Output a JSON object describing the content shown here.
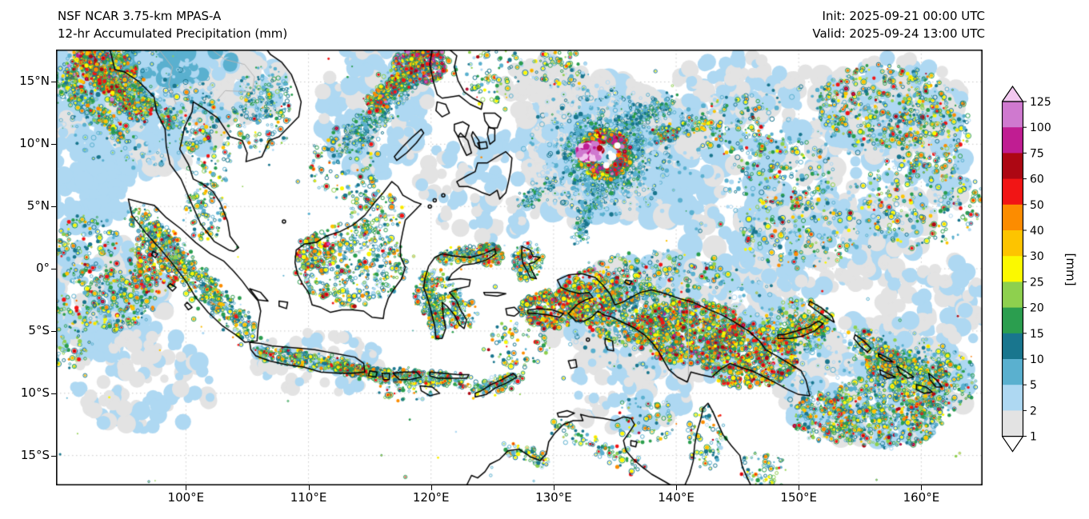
{
  "header": {
    "title_line1": "NSF NCAR 3.75-km MPAS-A",
    "title_line2": "12-hr Accumulated Precipitation (mm)",
    "init_label": "Init: 2025-09-21 00:00 UTC",
    "valid_label": "Valid: 2025-09-24 13:00 UTC"
  },
  "chart_data": {
    "type": "heatmap",
    "title": "12-hr Accumulated Precipitation (mm)",
    "model": "NSF NCAR 3.75-km MPAS-A",
    "init_time": "2025-09-21 00:00 UTC",
    "valid_time": "2025-09-24 13:00 UTC",
    "units": "mm",
    "lon_range": [
      89.4,
      165.0
    ],
    "lat_range": [
      -17.4,
      17.6
    ],
    "grid": "dotted",
    "x_axis": {
      "ticks": [
        {
          "label": "100°E",
          "lon": 100
        },
        {
          "label": "110°E",
          "lon": 110
        },
        {
          "label": "120°E",
          "lon": 120
        },
        {
          "label": "130°E",
          "lon": 130
        },
        {
          "label": "140°E",
          "lon": 140
        },
        {
          "label": "150°E",
          "lon": 150
        },
        {
          "label": "160°E",
          "lon": 160
        }
      ]
    },
    "y_axis": {
      "ticks": [
        {
          "label": "15°N",
          "lat": 15
        },
        {
          "label": "10°N",
          "lat": 10
        },
        {
          "label": "5°N",
          "lat": 5
        },
        {
          "label": "0°",
          "lat": 0
        },
        {
          "label": "5°S",
          "lat": -5
        },
        {
          "label": "10°S",
          "lat": -10
        },
        {
          "label": "15°S",
          "lat": -15
        }
      ]
    },
    "colorbar": {
      "label": "[mm]",
      "levels": [
        1,
        2,
        5,
        10,
        15,
        20,
        25,
        30,
        40,
        50,
        60,
        75,
        100,
        125
      ],
      "tick_labels": [
        "125",
        "100",
        "75",
        "60",
        "50",
        "40",
        "30",
        "25",
        "20",
        "15",
        "10",
        "5",
        "2",
        "1"
      ],
      "colors": [
        "#e3e3e3",
        "#aed8f2",
        "#5ab0cf",
        "#19768e",
        "#2b9e4f",
        "#8ed04e",
        "#fbf900",
        "#fdc400",
        "#fc8c00",
        "#f11515",
        "#ad0713",
        "#c01d92",
        "#cf79cf"
      ],
      "under": "#ffffff",
      "over": "#f2c7ef"
    },
    "features": [
      "Tropical cyclone with >125 mm rainfall core near 133E 9N (east of Philippines)",
      "Heavy rain band in northwest corner along Myanmar/Andaman coast",
      "Intense rain band near northern Luzon at top of domain",
      "Widespread convective cells over Sumatra, Borneo, Sulawesi, New Guinea and the Solomon Islands",
      "Dense convection field southeast of the Solomon Islands"
    ]
  }
}
